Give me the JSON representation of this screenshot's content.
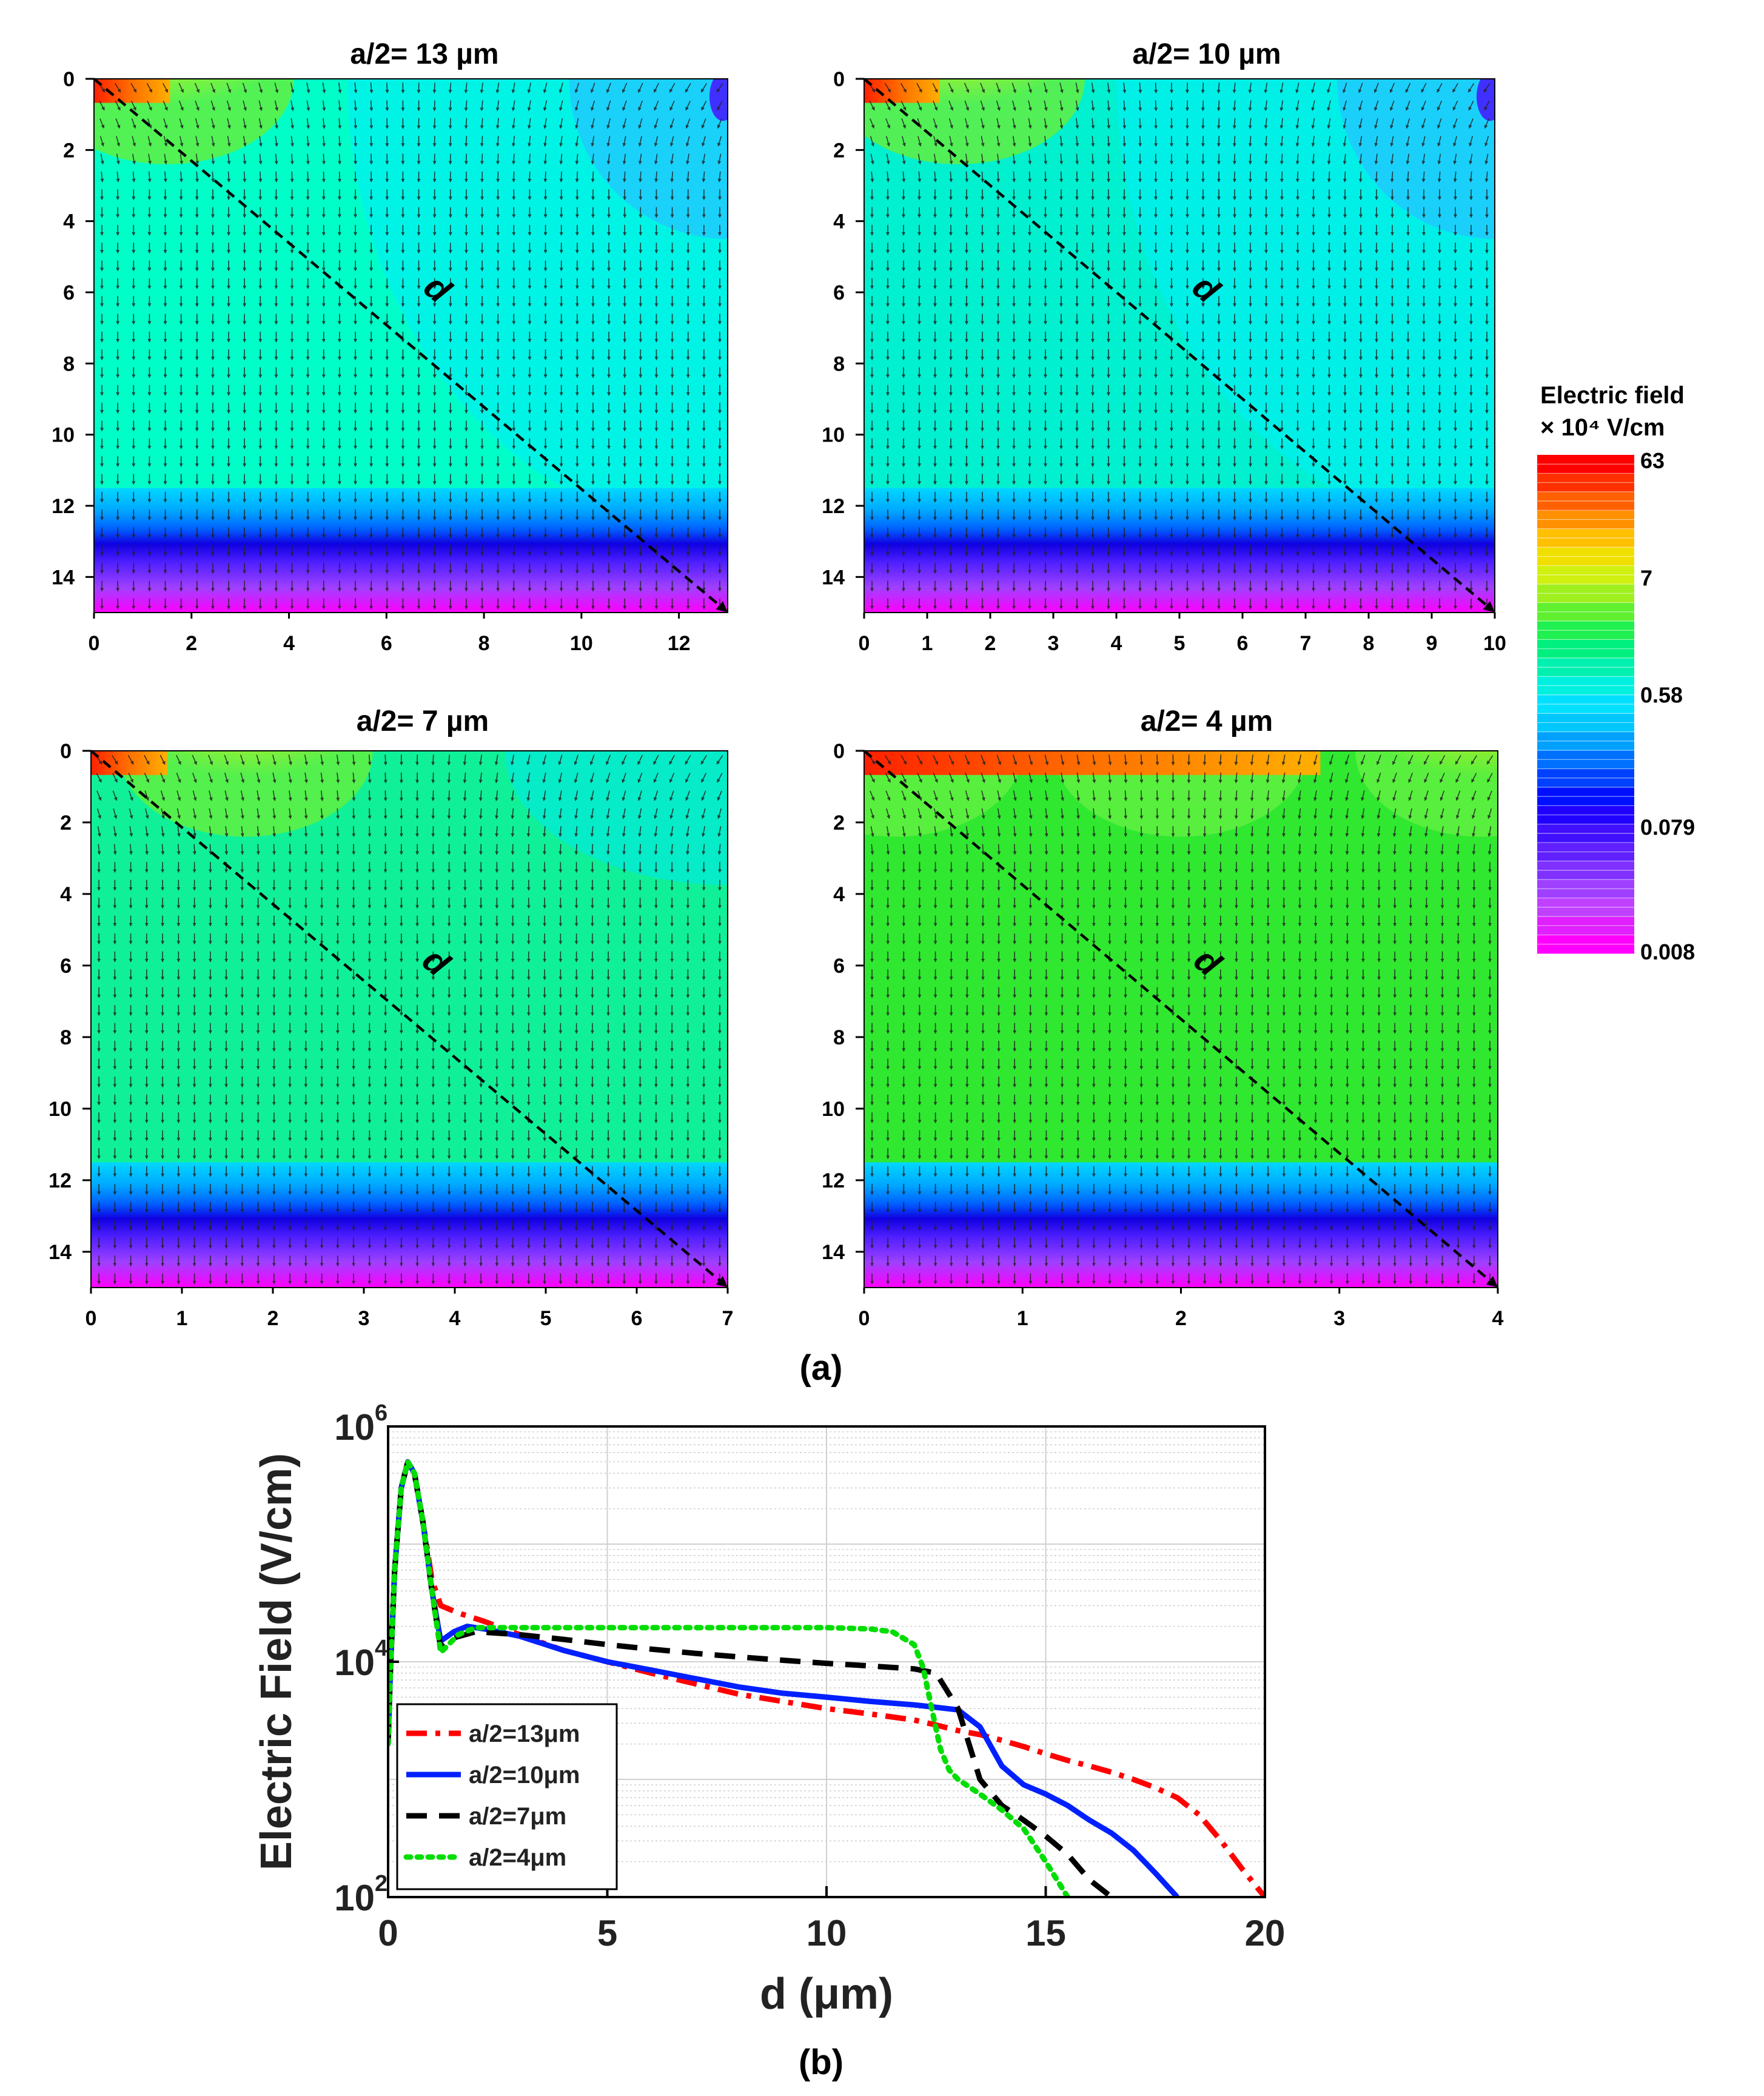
{
  "figure": {
    "caption_a": "(a)",
    "caption_b": "(b)"
  },
  "colorbar": {
    "title_line1": "Electric field",
    "title_line2": "× 10⁴ V/cm",
    "ticks": [
      "63",
      "7",
      "0.58",
      "0.079",
      "0.008"
    ],
    "colors": [
      "#ff00ff",
      "#e020ff",
      "#c040ff",
      "#a040ff",
      "#8030ff",
      "#6020ff",
      "#4010ff",
      "#2000ff",
      "#0010ff",
      "#0040ff",
      "#0070ff",
      "#00a0ff",
      "#00c8ff",
      "#00e0ff",
      "#00f0e0",
      "#00f0b0",
      "#00f080",
      "#20f050",
      "#60f030",
      "#a0f020",
      "#d0f010",
      "#f0e000",
      "#ffc000",
      "#ff9000",
      "#ff6000",
      "#ff3000",
      "#ff0000"
    ]
  },
  "contour_panels": [
    {
      "title": "a/2= 13 µm",
      "path_label": "d",
      "x_max": 13,
      "x_ticks": [
        0,
        2,
        4,
        6,
        8,
        10,
        12
      ],
      "y_ticks": [
        0,
        2,
        4,
        6,
        8,
        10,
        12,
        14
      ],
      "y_max": 15,
      "bulk_color": "#00ffc8",
      "blob_centers": [
        1.5
      ]
    },
    {
      "title": "a/2= 10 µm",
      "path_label": "d",
      "x_max": 10,
      "x_ticks": [
        0,
        1,
        2,
        3,
        4,
        5,
        6,
        7,
        8,
        9,
        10
      ],
      "y_ticks": [
        0,
        2,
        4,
        6,
        8,
        10,
        12,
        14
      ],
      "y_max": 15,
      "bulk_color": "#00f0d0",
      "blob_centers": [
        1.5
      ]
    },
    {
      "title": "a/2= 7 µm",
      "path_label": "d",
      "x_max": 7,
      "x_ticks": [
        0,
        1,
        2,
        3,
        4,
        5,
        6,
        7
      ],
      "y_ticks": [
        0,
        2,
        4,
        6,
        8,
        10,
        12,
        14
      ],
      "y_max": 15,
      "bulk_color": "#10f098",
      "blob_centers": [
        1.7
      ]
    },
    {
      "title": "a/2= 4 µm",
      "path_label": "d",
      "x_max": 4,
      "x_ticks": [
        0,
        1,
        2,
        3,
        4
      ],
      "y_ticks": [
        0,
        2,
        4,
        6,
        8,
        10,
        12,
        14
      ],
      "y_max": 15,
      "bulk_color": "#30e830",
      "blob_centers": [
        0.2,
        2.0,
        3.9
      ]
    }
  ],
  "chart_data": {
    "type": "line",
    "title": "",
    "xlabel": "d (μm)",
    "ylabel": "Electric Field (V/cm)",
    "xlim": [
      0,
      20
    ],
    "ylim": [
      100,
      1000000
    ],
    "yscale": "log",
    "x_ticks": [
      0,
      5,
      10,
      15,
      20
    ],
    "y_ticks": [
      {
        "value": 100,
        "label": "10",
        "exp": "2"
      },
      {
        "value": 10000,
        "label": "10",
        "exp": "4"
      },
      {
        "value": 1000000,
        "label": "10",
        "exp": "6"
      }
    ],
    "grid": true,
    "legend_position": "bottom-left",
    "series": [
      {
        "name": "a/2=13μm",
        "color": "#ff0000",
        "dash": "dashdot",
        "x": [
          0.0,
          0.05,
          0.15,
          0.3,
          0.45,
          0.6,
          0.8,
          1.0,
          1.2,
          1.6,
          2.2,
          3,
          4,
          5,
          6,
          7,
          8,
          9,
          10,
          11,
          12,
          12.5,
          13,
          13.5,
          14,
          14.5,
          15,
          15.5,
          16,
          16.5,
          17,
          17.5,
          18,
          18.5,
          19,
          19.5,
          20
        ],
        "y": [
          2000,
          8000,
          60000,
          300000,
          500000,
          400000,
          150000,
          50000,
          30000,
          26000,
          22000,
          17000,
          12500,
          10000,
          8000,
          6500,
          5300,
          4600,
          4000,
          3600,
          3200,
          2900,
          2600,
          2400,
          2150,
          1900,
          1650,
          1450,
          1300,
          1150,
          1000,
          850,
          700,
          500,
          300,
          170,
          100
        ]
      },
      {
        "name": "a/2=10μm",
        "color": "#0020ff",
        "dash": "solid",
        "x": [
          0.0,
          0.05,
          0.15,
          0.3,
          0.45,
          0.6,
          0.8,
          1.0,
          1.2,
          1.5,
          1.8,
          2.2,
          3,
          4,
          5,
          6,
          7,
          8,
          9,
          10,
          11,
          12,
          12.5,
          13,
          13.5,
          14,
          14.5,
          15,
          15.5,
          16,
          16.5,
          17,
          17.5,
          18
        ],
        "y": [
          2000,
          8000,
          60000,
          300000,
          500000,
          400000,
          150000,
          40000,
          15000,
          18000,
          20000,
          19000,
          16500,
          12500,
          10000,
          8500,
          7200,
          6100,
          5400,
          5000,
          4600,
          4300,
          4100,
          3900,
          2800,
          1300,
          900,
          750,
          600,
          450,
          350,
          250,
          160,
          100
        ]
      },
      {
        "name": "a/2=7μm",
        "color": "#000000",
        "dash": "dashed",
        "x": [
          0.0,
          0.05,
          0.15,
          0.3,
          0.45,
          0.6,
          0.8,
          1.0,
          1.2,
          1.5,
          2,
          3,
          4,
          5,
          6,
          7,
          8,
          9,
          10,
          11,
          12,
          12.5,
          13,
          13.5,
          14,
          14.5,
          15,
          15.5,
          16,
          16.5
        ],
        "y": [
          2000,
          8000,
          60000,
          300000,
          500000,
          400000,
          150000,
          40000,
          13000,
          16000,
          18000,
          17000,
          15500,
          14000,
          12800,
          11800,
          11000,
          10300,
          9700,
          9200,
          8700,
          8000,
          4000,
          1000,
          600,
          450,
          330,
          230,
          140,
          100
        ]
      },
      {
        "name": "a/2=4μm",
        "color": "#00dd00",
        "dash": "dotted",
        "x": [
          0.0,
          0.05,
          0.15,
          0.3,
          0.45,
          0.6,
          0.8,
          1.0,
          1.2,
          1.6,
          2,
          3,
          4,
          5,
          6,
          7,
          8,
          9,
          10,
          11,
          11.5,
          12,
          12.2,
          12.4,
          12.6,
          12.8,
          13,
          13.5,
          14,
          14.5,
          15,
          15.5
        ],
        "y": [
          2000,
          8000,
          60000,
          300000,
          500000,
          400000,
          150000,
          40000,
          12000,
          17000,
          19500,
          19500,
          19500,
          19500,
          19500,
          19500,
          19500,
          19500,
          19500,
          19000,
          18000,
          14000,
          9000,
          4000,
          1800,
          1200,
          1000,
          750,
          550,
          380,
          200,
          100
        ]
      }
    ]
  }
}
